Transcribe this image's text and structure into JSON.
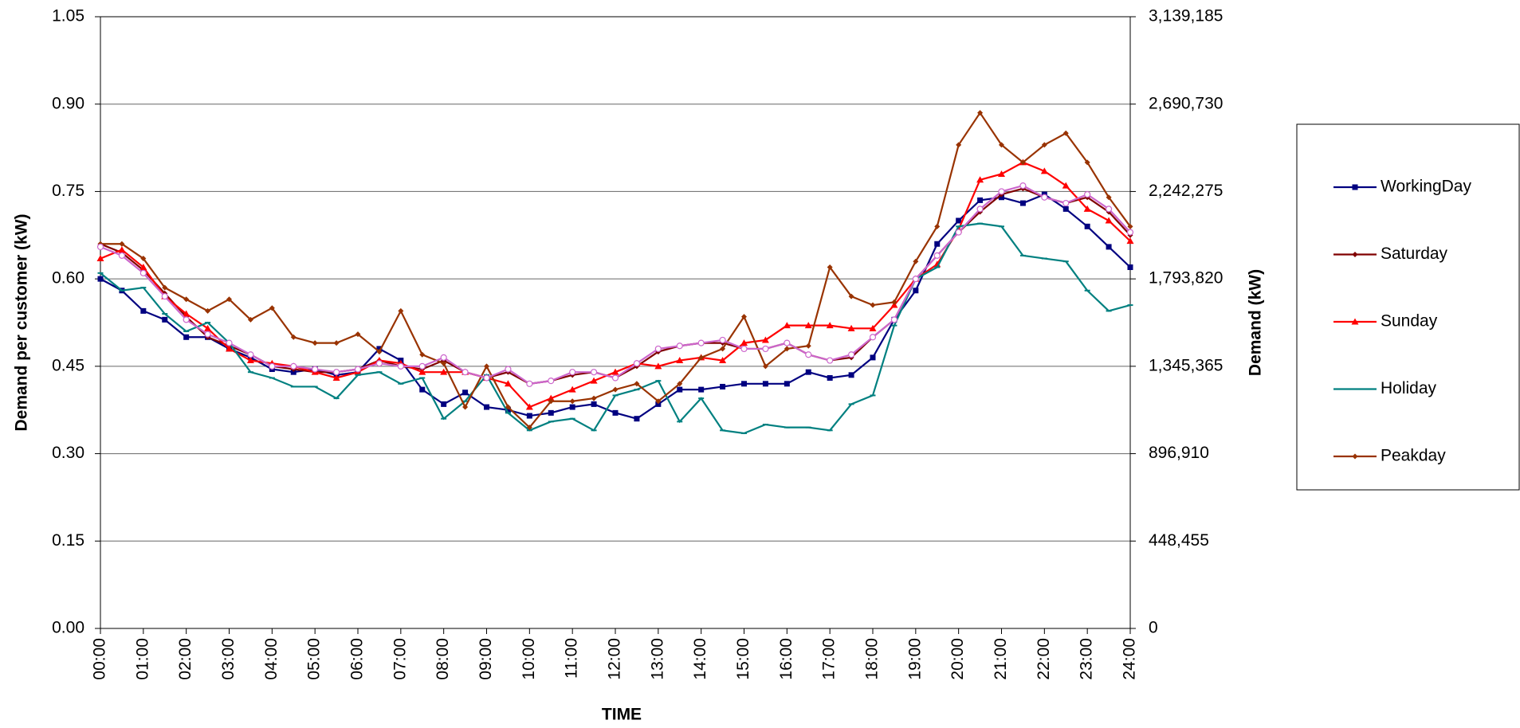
{
  "chart_data": {
    "type": "line",
    "x": [
      0,
      0.5,
      1,
      1.5,
      2,
      2.5,
      3,
      3.5,
      4,
      4.5,
      5,
      5.5,
      6,
      6.5,
      7,
      7.5,
      8,
      8.5,
      9,
      9.5,
      10,
      10.5,
      11,
      11.5,
      12,
      12.5,
      13,
      13.5,
      14,
      14.5,
      15,
      15.5,
      16,
      16.5,
      17,
      17.5,
      18,
      18.5,
      19,
      19.5,
      20,
      20.5,
      21,
      21.5,
      22,
      22.5,
      23,
      23.5,
      24
    ],
    "xlim": [
      0,
      24
    ],
    "xticks": [
      {
        "value": 0,
        "label": "00:00"
      },
      {
        "value": 1,
        "label": "01:00"
      },
      {
        "value": 2,
        "label": "02:00"
      },
      {
        "value": 3,
        "label": "03:00"
      },
      {
        "value": 4,
        "label": "04:00"
      },
      {
        "value": 5,
        "label": "05:00"
      },
      {
        "value": 6,
        "label": "06:00"
      },
      {
        "value": 7,
        "label": "07:00"
      },
      {
        "value": 8,
        "label": "08:00"
      },
      {
        "value": 9,
        "label": "09:00"
      },
      {
        "value": 10,
        "label": "10:00"
      },
      {
        "value": 11,
        "label": "11:00"
      },
      {
        "value": 12,
        "label": "12:00"
      },
      {
        "value": 13,
        "label": "13:00"
      },
      {
        "value": 14,
        "label": "14:00"
      },
      {
        "value": 15,
        "label": "15:00"
      },
      {
        "value": 16,
        "label": "16:00"
      },
      {
        "value": 17,
        "label": "17:00"
      },
      {
        "value": 18,
        "label": "18:00"
      },
      {
        "value": 19,
        "label": "19:00"
      },
      {
        "value": 20,
        "label": "20:00"
      },
      {
        "value": 21,
        "label": "21:00"
      },
      {
        "value": 22,
        "label": "22:00"
      },
      {
        "value": 23,
        "label": "23:00"
      },
      {
        "value": 24,
        "label": "24:00"
      }
    ],
    "xlabel": "TIME",
    "ylabel": "Demand per customer (kW)",
    "y2label": "Demand (kW)",
    "ylim": [
      0,
      1.05
    ],
    "yticks": [
      {
        "value": 0,
        "label": "0.00"
      },
      {
        "value": 0.15,
        "label": "0.15"
      },
      {
        "value": 0.3,
        "label": "0.30"
      },
      {
        "value": 0.45,
        "label": "0.45"
      },
      {
        "value": 0.6,
        "label": "0.60"
      },
      {
        "value": 0.75,
        "label": "0.75"
      },
      {
        "value": 0.9,
        "label": "0.90"
      },
      {
        "value": 1.05,
        "label": "1.05"
      }
    ],
    "y2lim": [
      0,
      3139185
    ],
    "y2ticks": [
      0,
      {
        "value": 448455,
        "label": "448,455"
      },
      {
        "value": 896910,
        "label": "896,910"
      },
      {
        "value": 1345365,
        "label": "1,345,365"
      },
      {
        "value": 1793820,
        "label": "1,793,820"
      },
      {
        "value": 2242275,
        "label": "2,242,275"
      },
      {
        "value": 2690730,
        "label": "2,690,730"
      },
      {
        "value": 3139185,
        "label": "3,139,185"
      }
    ],
    "grid": true,
    "legend": "right",
    "series": [
      {
        "name": "WorkingDay",
        "color": "#000080",
        "marker": "square",
        "values": [
          0.6,
          0.58,
          0.545,
          0.53,
          0.5,
          0.5,
          0.48,
          0.465,
          0.445,
          0.44,
          0.445,
          0.435,
          0.44,
          0.48,
          0.46,
          0.41,
          0.385,
          0.405,
          0.38,
          0.375,
          0.365,
          0.37,
          0.38,
          0.385,
          0.37,
          0.36,
          0.385,
          0.41,
          0.41,
          0.415,
          0.42,
          0.42,
          0.42,
          0.44,
          0.43,
          0.435,
          0.465,
          0.53,
          0.58,
          0.66,
          0.7,
          0.735,
          0.74,
          0.73,
          0.745,
          0.72,
          0.69,
          0.655,
          0.62
        ]
      },
      {
        "name": "Saturday",
        "color": "#800000",
        "marker": "diamond",
        "values": [
          0.66,
          0.645,
          0.615,
          0.575,
          0.535,
          0.5,
          0.485,
          0.47,
          0.45,
          0.445,
          0.44,
          0.44,
          0.445,
          0.46,
          0.45,
          0.445,
          0.46,
          0.44,
          0.43,
          0.44,
          0.42,
          0.425,
          0.435,
          0.44,
          0.43,
          0.45,
          0.475,
          0.485,
          0.49,
          0.49,
          0.48,
          0.48,
          0.49,
          0.47,
          0.46,
          0.465,
          0.5,
          0.53,
          0.6,
          0.64,
          0.68,
          0.715,
          0.745,
          0.755,
          0.74,
          0.73,
          0.74,
          0.715,
          0.675
        ]
      },
      {
        "name": "Sunday",
        "color": "#ff0000",
        "marker": "triangle",
        "values": [
          0.635,
          0.65,
          0.62,
          0.57,
          0.54,
          0.515,
          0.48,
          0.46,
          0.455,
          0.45,
          0.44,
          0.43,
          0.44,
          0.46,
          0.455,
          0.44,
          0.44,
          0.44,
          0.43,
          0.42,
          0.38,
          0.395,
          0.41,
          0.425,
          0.44,
          0.455,
          0.45,
          0.46,
          0.465,
          0.46,
          0.49,
          0.495,
          0.52,
          0.52,
          0.52,
          0.515,
          0.515,
          0.555,
          0.6,
          0.625,
          0.685,
          0.77,
          0.78,
          0.8,
          0.785,
          0.76,
          0.72,
          0.7,
          0.665
        ]
      },
      {
        "name": "Holiday",
        "color": "#008080",
        "marker": "dash",
        "values": [
          0.61,
          0.58,
          0.585,
          0.54,
          0.51,
          0.525,
          0.49,
          0.44,
          0.43,
          0.415,
          0.415,
          0.395,
          0.435,
          0.44,
          0.42,
          0.43,
          0.36,
          0.39,
          0.435,
          0.37,
          0.34,
          0.355,
          0.36,
          0.34,
          0.4,
          0.41,
          0.425,
          0.355,
          0.395,
          0.34,
          0.335,
          0.35,
          0.345,
          0.345,
          0.34,
          0.385,
          0.4,
          0.52,
          0.6,
          0.62,
          0.69,
          0.695,
          0.69,
          0.64,
          0.635,
          0.63,
          0.58,
          0.545,
          0.555
        ]
      },
      {
        "name": "Peakday",
        "color": "#993300",
        "marker": "diamond",
        "values": [
          0.66,
          0.66,
          0.635,
          0.585,
          0.565,
          0.545,
          0.565,
          0.53,
          0.55,
          0.5,
          0.49,
          0.49,
          0.505,
          0.475,
          0.545,
          0.47,
          0.455,
          0.38,
          0.45,
          0.38,
          0.345,
          0.39,
          0.39,
          0.395,
          0.41,
          0.42,
          0.39,
          0.42,
          0.465,
          0.48,
          0.535,
          0.45,
          0.48,
          0.485,
          0.62,
          0.57,
          0.555,
          0.56,
          0.63,
          0.69,
          0.83,
          0.885,
          0.83,
          0.8,
          0.83,
          0.85,
          0.8,
          0.74,
          0.69
        ]
      },
      {
        "color": "#cc66cc",
        "marker": "circle",
        "values": [
          0.655,
          0.64,
          0.61,
          0.57,
          0.53,
          0.505,
          0.49,
          0.47,
          0.45,
          0.45,
          0.445,
          0.44,
          0.445,
          0.455,
          0.45,
          0.45,
          0.465,
          0.44,
          0.43,
          0.445,
          0.42,
          0.425,
          0.44,
          0.44,
          0.43,
          0.455,
          0.48,
          0.485,
          0.49,
          0.495,
          0.48,
          0.48,
          0.49,
          0.47,
          0.46,
          0.47,
          0.5,
          0.53,
          0.6,
          0.64,
          0.68,
          0.72,
          0.75,
          0.76,
          0.74,
          0.73,
          0.745,
          0.72,
          0.68
        ]
      }
    ]
  }
}
